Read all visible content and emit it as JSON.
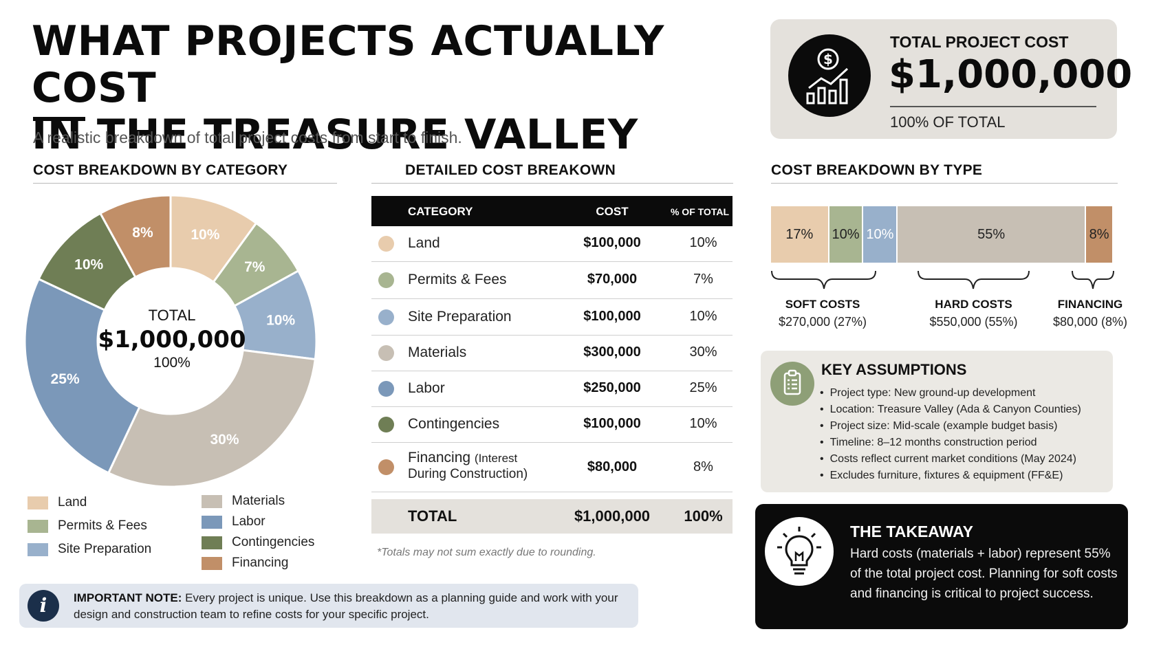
{
  "header": {
    "title_line1": "WHAT PROJECTS ACTUALLY COST",
    "title_line2": "IN THE TREASURE VALLEY",
    "subtitle": "A realistic breakdown of total project costs from start to finish."
  },
  "total_card": {
    "label": "TOTAL PROJECT COST",
    "value": "$1,000,000",
    "pct_text": "100% OF TOTAL",
    "icon": "money-growth-icon"
  },
  "sections": {
    "by_category": "COST BREAKDOWN BY CATEGORY",
    "detailed": "DETAILED COST BREAKOWN",
    "by_type": "COST BREAKDOWN BY TYPE"
  },
  "donut_center": {
    "label": "TOTAL",
    "value": "$1,000,000",
    "pct": "100%"
  },
  "legend": {
    "col1": [
      "Land",
      "Permits & Fees",
      "Site Preparation"
    ],
    "col2": [
      "Materials",
      "Labor",
      "Contingencies",
      "Financing"
    ]
  },
  "table": {
    "headers": {
      "category": "CATEGORY",
      "cost": "COST",
      "pct": "% OF TOTAL"
    },
    "rows": [
      {
        "category": "Land",
        "sub": "",
        "cost": "$100,000",
        "pct": "10%"
      },
      {
        "category": "Permits & Fees",
        "sub": "",
        "cost": "$70,000",
        "pct": "7%"
      },
      {
        "category": "Site Preparation",
        "sub": "",
        "cost": "$100,000",
        "pct": "10%"
      },
      {
        "category": "Materials",
        "sub": "",
        "cost": "$300,000",
        "pct": "30%"
      },
      {
        "category": "Labor",
        "sub": "",
        "cost": "$250,000",
        "pct": "25%"
      },
      {
        "category": "Contingencies",
        "sub": "",
        "cost": "$100,000",
        "pct": "10%"
      },
      {
        "category": "Financing",
        "sub": "(Interest",
        "sub2": "During Construction)",
        "cost": "$80,000",
        "pct": "8%"
      }
    ],
    "total": {
      "label": "TOTAL",
      "cost": "$1,000,000",
      "pct": "100%"
    },
    "footnote": "*Totals may not sum exactly due to rounding."
  },
  "type_groups": [
    {
      "label": "SOFT COSTS",
      "value": "$270,000 (27%)"
    },
    {
      "label": "HARD COSTS",
      "value": "$550,000 (55%)"
    },
    {
      "label": "FINANCING",
      "value": "$80,000 (8%)"
    }
  ],
  "assumptions": {
    "title": "KEY ASSUMPTIONS",
    "icon": "clipboard-icon",
    "items": [
      "Project type: New ground-up development",
      "Location: Treasure Valley (Ada & Canyon Counties)",
      "Project size: Mid-scale (example budget basis)",
      "Timeline: 8–12 months construction period",
      "Costs reflect current market conditions (May 2024)",
      "Excludes furniture, fixtures & equipment (FF&E)"
    ]
  },
  "takeaway": {
    "title": "THE TAKEAWAY",
    "icon": "lightbulb-icon",
    "text": "Hard costs (materials + labor) represent 55% of the total project cost. Planning for soft costs and financing is critical to project success."
  },
  "note": {
    "label": "IMPORTANT NOTE:",
    "text": "Every project is unique. Use this breakdown as a planning guide and work with your design and construction team to refine costs for your specific project.",
    "icon": "info-icon"
  },
  "colors": {
    "land": "#e8ccad",
    "permits": "#a8b591",
    "site": "#98b0cb",
    "materials": "#c7bfb4",
    "labor": "#7b98b9",
    "contingencies": "#6f7e55",
    "financing": "#c18f68",
    "dark": "#0b0b0b"
  },
  "chart_data": [
    {
      "type": "pie",
      "title": "COST BREAKDOWN BY CATEGORY",
      "categories": [
        "Land",
        "Permits & Fees",
        "Site Preparation",
        "Materials",
        "Labor",
        "Contingencies",
        "Financing"
      ],
      "values": [
        10,
        7,
        10,
        30,
        25,
        10,
        8
      ],
      "labels": [
        "10%",
        "7%",
        "10%",
        "30%",
        "25%",
        "10%",
        "8%"
      ],
      "colors": [
        "#e8ccad",
        "#a8b591",
        "#98b0cb",
        "#c7bfb4",
        "#7b98b9",
        "#6f7e55",
        "#c18f68"
      ],
      "center_text": [
        "TOTAL",
        "$1,000,000",
        "100%"
      ]
    },
    {
      "type": "bar",
      "stacked": true,
      "orientation": "horizontal",
      "title": "COST BREAKDOWN BY TYPE",
      "segments": [
        {
          "label": "17%",
          "value": 17,
          "color": "#e8ccad"
        },
        {
          "label": "10%",
          "value": 10,
          "color": "#a8b591"
        },
        {
          "label": "10%",
          "value": 10,
          "color": "#98b0cb"
        },
        {
          "label": "55%",
          "value": 55,
          "color": "#c7bfb4"
        },
        {
          "label": "8%",
          "value": 8,
          "color": "#c18f68"
        }
      ]
    }
  ]
}
